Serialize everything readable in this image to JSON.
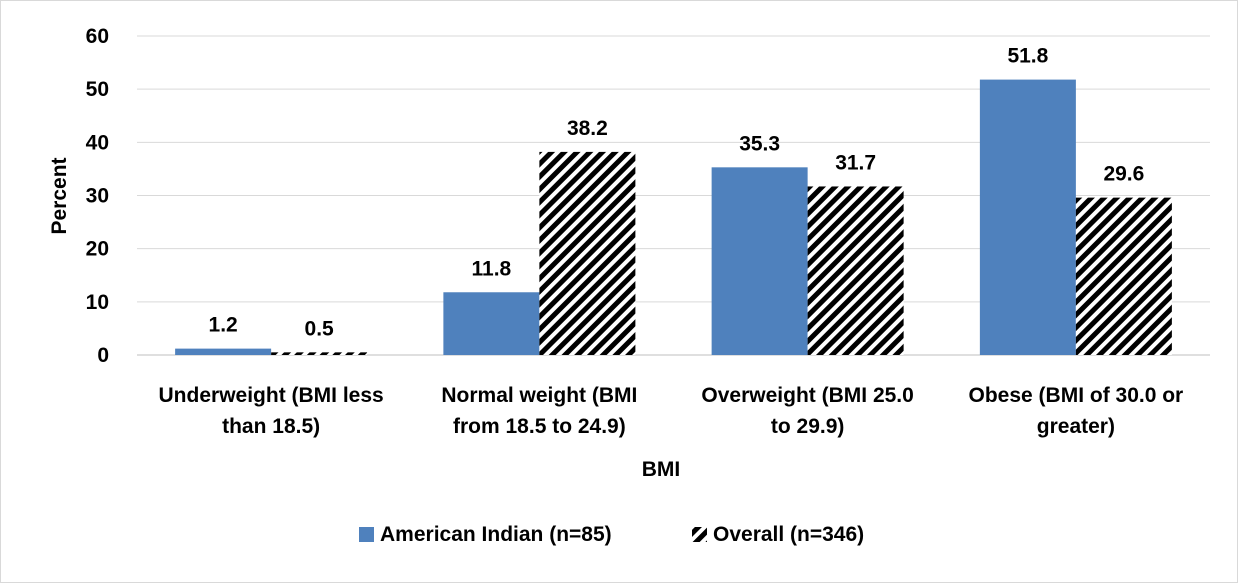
{
  "chart_data": {
    "type": "bar",
    "categories": [
      [
        "Underweight (BMI less",
        "than 18.5)"
      ],
      [
        "Normal weight (BMI",
        "from 18.5 to 24.9)"
      ],
      [
        "Overweight (BMI 25.0",
        "to 29.9)"
      ],
      [
        "Obese (BMI of 30.0 or",
        "greater)"
      ]
    ],
    "series": [
      {
        "name": "American Indian (n=85)",
        "values": [
          1.2,
          11.8,
          35.3,
          51.8
        ],
        "color": "#4f81bd",
        "pattern": "solid"
      },
      {
        "name": "Overall (n=346)",
        "values": [
          0.5,
          38.2,
          31.7,
          29.6
        ],
        "color": "#000000",
        "pattern": "diagonal-stripes"
      }
    ],
    "value_labels": [
      [
        "1.2",
        "11.8",
        "35.3",
        "51.8"
      ],
      [
        "0.5",
        "38.2",
        "31.7",
        "29.6"
      ]
    ],
    "ylim": [
      0,
      60
    ],
    "yticks": [
      0,
      10,
      20,
      30,
      40,
      50,
      60
    ],
    "xlabel": "BMI",
    "ylabel": "Percent",
    "grid": true,
    "legend_position": "bottom"
  }
}
